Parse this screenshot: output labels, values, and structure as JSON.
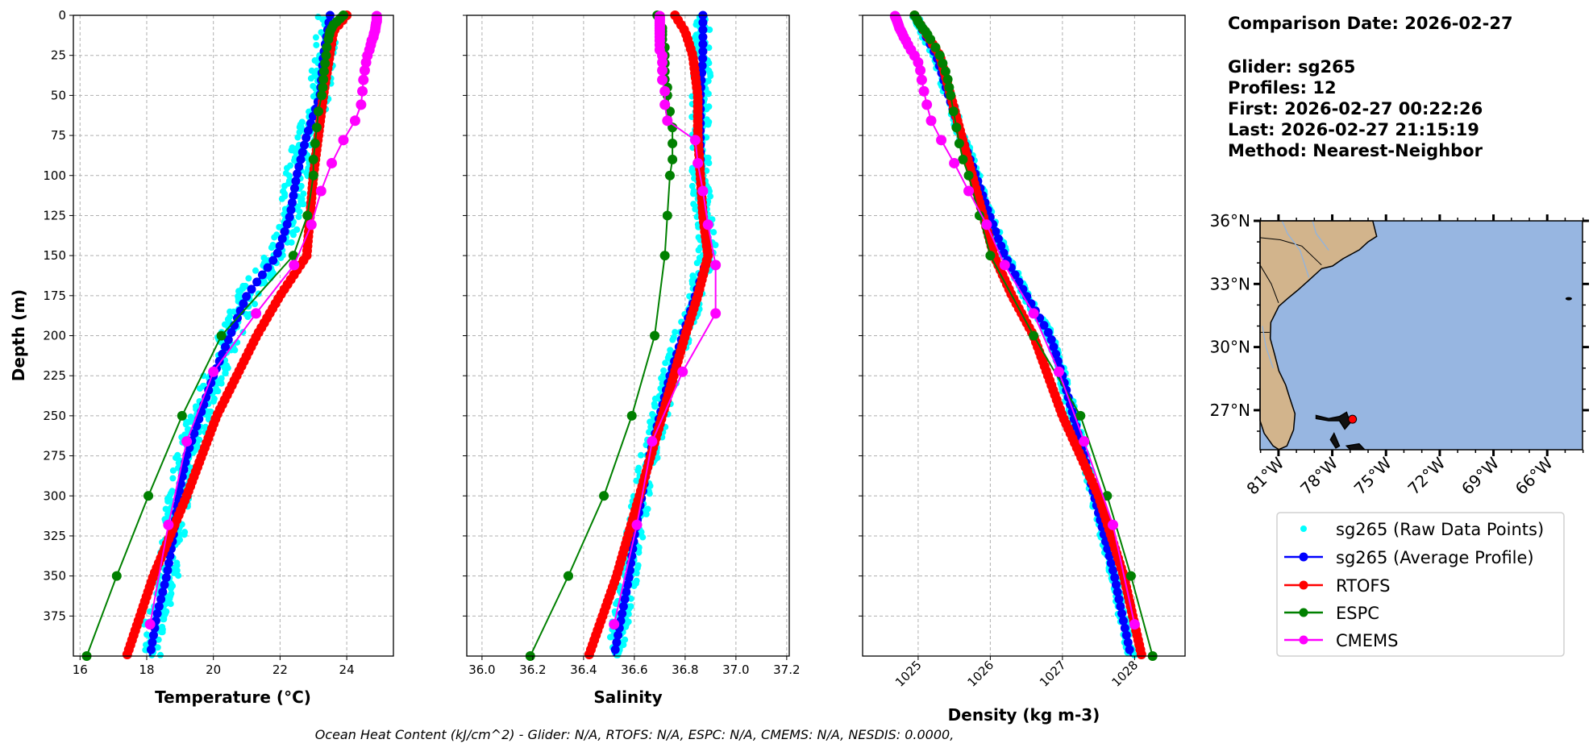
{
  "info": {
    "comparison_date": "Comparison Date: 2026-02-27",
    "glider": "Glider: sg265",
    "profiles": "Profiles: 12",
    "first": "First: 2026-02-27 00:22:26",
    "last": "Last: 2026-02-27 21:15:19",
    "method": "Method: Nearest-Neighbor"
  },
  "footer": "Ocean Heat Content (kJ/cm^2) - Glider: N/A,  RTOFS: N/A,  ESPC: N/A,  CMEMS: N/A,  NESDIS: 0.0000,",
  "legend": [
    {
      "label": "sg265 (Raw Data Points)",
      "color": "#00ffff",
      "style": "dot"
    },
    {
      "label": "sg265 (Average Profile)",
      "color": "#0000ff",
      "style": "line-marker"
    },
    {
      "label": "RTOFS",
      "color": "#ff0000",
      "style": "line-marker"
    },
    {
      "label": "ESPC",
      "color": "#008000",
      "style": "line-marker"
    },
    {
      "label": "CMEMS",
      "color": "#ff00ff",
      "style": "line-marker"
    }
  ],
  "map": {
    "lat_ticks": [
      "36°N",
      "33°N",
      "30°N",
      "27°N"
    ],
    "lat_values": [
      36,
      33,
      30,
      27
    ],
    "lon_ticks": [
      "81°W",
      "78°W",
      "75°W",
      "72°W",
      "69°W",
      "66°W"
    ],
    "lon_values": [
      -81,
      -78,
      -75,
      -72,
      -69,
      -66
    ],
    "lon_range": [
      -82.03,
      -64.03
    ],
    "lat_range": [
      25.12,
      36.0
    ],
    "glider_location": {
      "lon": -76.87,
      "lat": 26.57
    },
    "land_color": "#d2b48c",
    "ocean_color": "#97b6e1"
  },
  "chart_data": [
    {
      "type": "line",
      "title": "",
      "xlabel": "Temperature (°C)",
      "ylabel": "Depth (m)",
      "xlim": [
        15.8,
        25.4
      ],
      "ylim": [
        400,
        0
      ],
      "xticks": [
        16,
        18,
        20,
        22,
        24
      ],
      "xtick_labels": [
        "16",
        "18",
        "20",
        "22",
        "24"
      ],
      "yticks": [
        0,
        25,
        50,
        75,
        100,
        125,
        150,
        175,
        200,
        225,
        250,
        275,
        300,
        325,
        350,
        375
      ],
      "ytick_labels": [
        "0",
        "25",
        "50",
        "75",
        "100",
        "125",
        "150",
        "175",
        "200",
        "225",
        "250",
        "275",
        "300",
        "325",
        "350",
        "375"
      ],
      "grid": true,
      "raw_spread": 0.35,
      "series": [
        {
          "name": "sg265 (Average Profile)",
          "depth": [
            0,
            25,
            50,
            75,
            100,
            125,
            150,
            175,
            200,
            225,
            250,
            275,
            300,
            325,
            350,
            375,
            400
          ],
          "values": [
            23.5,
            23.3,
            23.2,
            22.8,
            22.5,
            22.3,
            21.9,
            21.0,
            20.5,
            20.0,
            19.6,
            19.2,
            18.95,
            18.8,
            18.6,
            18.3,
            18.1
          ]
        },
        {
          "name": "RTOFS",
          "depth": [
            0,
            10,
            50,
            100,
            125,
            150,
            175,
            200,
            250,
            300,
            350,
            375,
            400
          ],
          "values": [
            24.0,
            23.6,
            23.3,
            23.0,
            22.9,
            22.8,
            22.0,
            21.3,
            20.1,
            19.2,
            18.2,
            17.8,
            17.4
          ]
        },
        {
          "name": "ESPC",
          "depth": [
            0,
            2,
            4,
            6,
            8,
            10,
            12,
            15,
            20,
            25,
            30,
            35,
            40,
            45,
            50,
            60,
            70,
            80,
            90,
            100,
            125,
            150,
            200,
            250,
            300,
            350,
            400
          ],
          "values": [
            23.9,
            23.8,
            23.7,
            23.6,
            23.55,
            23.5,
            23.48,
            23.45,
            23.4,
            23.38,
            23.35,
            23.32,
            23.3,
            23.28,
            23.25,
            23.15,
            23.1,
            23.05,
            23.0,
            23.0,
            22.82,
            22.4,
            20.24,
            19.06,
            18.05,
            17.1,
            16.2
          ]
        },
        {
          "name": "CMEMS",
          "depth": [
            0.5,
            1.5,
            2.6,
            3.8,
            5.1,
            6.4,
            7.9,
            9.6,
            11.4,
            13.5,
            15.8,
            18.5,
            21.6,
            25.2,
            29.4,
            34.4,
            40.3,
            47.4,
            55.8,
            65.8,
            77.9,
            92.3,
            109.7,
            130.7,
            155.9,
            186.1,
            222.5,
            266.0,
            318.1,
            380.2
          ],
          "values": [
            24.9,
            24.9,
            24.9,
            24.9,
            24.88,
            24.87,
            24.86,
            24.85,
            24.82,
            24.8,
            24.75,
            24.72,
            24.68,
            24.62,
            24.58,
            24.54,
            24.5,
            24.47,
            24.43,
            24.25,
            23.9,
            23.55,
            23.23,
            22.94,
            22.42,
            21.28,
            20.0,
            19.2,
            18.65,
            18.1
          ]
        }
      ]
    },
    {
      "type": "line",
      "xlabel": "Salinity",
      "ylabel": "",
      "xlim": [
        35.94,
        37.21
      ],
      "ylim": [
        400,
        0
      ],
      "xticks": [
        36.0,
        36.2,
        36.4,
        36.6,
        36.8,
        37.0,
        37.2
      ],
      "xtick_labels": [
        "36.0",
        "36.2",
        "36.4",
        "36.6",
        "36.8",
        "37.0",
        "37.2"
      ],
      "grid": true,
      "raw_spread": 0.035,
      "series": [
        {
          "name": "sg265 (Average Profile)",
          "depth": [
            0,
            25,
            50,
            75,
            100,
            125,
            150,
            175,
            200,
            225,
            250,
            275,
            300,
            325,
            350,
            375,
            400
          ],
          "values": [
            36.87,
            36.87,
            36.86,
            36.86,
            36.86,
            36.87,
            36.89,
            36.84,
            36.79,
            36.74,
            36.7,
            36.66,
            36.63,
            36.6,
            36.58,
            36.55,
            36.52
          ]
        },
        {
          "name": "RTOFS",
          "depth": [
            0,
            10,
            25,
            50,
            75,
            100,
            125,
            150,
            175,
            200,
            250,
            300,
            350,
            400
          ],
          "values": [
            36.76,
            36.8,
            36.83,
            36.85,
            36.85,
            36.86,
            36.87,
            36.89,
            36.85,
            36.8,
            36.71,
            36.62,
            36.53,
            36.42
          ]
        },
        {
          "name": "ESPC",
          "depth": [
            0,
            2,
            4,
            6,
            8,
            10,
            12,
            15,
            20,
            25,
            30,
            35,
            40,
            45,
            50,
            60,
            70,
            80,
            90,
            100,
            125,
            150,
            200,
            250,
            300,
            350,
            400
          ],
          "values": [
            36.69,
            36.7,
            36.7,
            36.7,
            36.71,
            36.71,
            36.71,
            36.71,
            36.72,
            36.72,
            36.72,
            36.72,
            36.72,
            36.73,
            36.73,
            36.74,
            36.75,
            36.75,
            36.75,
            36.74,
            36.73,
            36.72,
            36.68,
            36.59,
            36.48,
            36.34,
            36.19
          ]
        },
        {
          "name": "CMEMS",
          "depth": [
            0.5,
            1.5,
            2.6,
            3.8,
            5.1,
            6.4,
            7.9,
            9.6,
            11.4,
            13.5,
            15.8,
            18.5,
            21.6,
            25.2,
            29.4,
            34.4,
            40.3,
            47.4,
            55.8,
            65.8,
            77.9,
            92.3,
            109.7,
            130.7,
            155.9,
            186.1,
            222.5,
            266.0,
            318.1,
            380.2
          ],
          "values": [
            36.7,
            36.7,
            36.7,
            36.7,
            36.7,
            36.7,
            36.7,
            36.7,
            36.7,
            36.7,
            36.7,
            36.7,
            36.7,
            36.71,
            36.71,
            36.71,
            36.71,
            36.72,
            36.72,
            36.73,
            36.84,
            36.85,
            36.87,
            36.89,
            36.92,
            36.92,
            36.79,
            36.67,
            36.61,
            36.52
          ]
        }
      ]
    },
    {
      "type": "line",
      "xlabel": "Density (kg m-3)",
      "ylabel": "",
      "xlim": [
        1024.23,
        1028.7
      ],
      "ylim": [
        400,
        0
      ],
      "xticks": [
        1025,
        1026,
        1027,
        1028
      ],
      "xtick_labels": [
        "1025",
        "1026",
        "1027",
        "1028"
      ],
      "grid": true,
      "raw_spread": 0.06,
      "series": [
        {
          "name": "sg265 (Average Profile)",
          "depth": [
            0,
            25,
            50,
            75,
            100,
            125,
            150,
            175,
            200,
            225,
            250,
            275,
            300,
            325,
            350,
            375,
            400
          ],
          "values": [
            1024.95,
            1025.25,
            1025.42,
            1025.6,
            1025.8,
            1025.99,
            1026.2,
            1026.5,
            1026.83,
            1027.0,
            1027.15,
            1027.3,
            1027.44,
            1027.58,
            1027.72,
            1027.83,
            1027.95
          ]
        },
        {
          "name": "RTOFS",
          "depth": [
            0,
            25,
            50,
            75,
            100,
            125,
            150,
            175,
            200,
            250,
            300,
            350,
            400
          ],
          "values": [
            1024.95,
            1025.3,
            1025.45,
            1025.6,
            1025.75,
            1025.9,
            1026.05,
            1026.3,
            1026.6,
            1027.0,
            1027.5,
            1027.85,
            1028.1
          ]
        },
        {
          "name": "ESPC",
          "depth": [
            0,
            2,
            4,
            6,
            8,
            10,
            12,
            15,
            20,
            25,
            30,
            35,
            40,
            45,
            50,
            60,
            70,
            80,
            90,
            100,
            125,
            150,
            200,
            250,
            300,
            350,
            400
          ],
          "values": [
            1024.95,
            1024.98,
            1025.0,
            1025.03,
            1025.06,
            1025.1,
            1025.13,
            1025.17,
            1025.24,
            1025.3,
            1025.34,
            1025.38,
            1025.41,
            1025.43,
            1025.45,
            1025.49,
            1025.53,
            1025.57,
            1025.62,
            1025.7,
            1025.85,
            1026.0,
            1026.6,
            1027.25,
            1027.62,
            1027.95,
            1028.25
          ]
        },
        {
          "name": "CMEMS",
          "depth": [
            0.5,
            1.5,
            2.6,
            3.8,
            5.1,
            6.4,
            7.9,
            9.6,
            11.4,
            13.5,
            15.8,
            18.5,
            21.6,
            25.2,
            29.4,
            34.4,
            40.3,
            47.4,
            55.8,
            65.8,
            77.9,
            92.3,
            109.7,
            130.7,
            155.9,
            186.1,
            222.5,
            266.0,
            318.1,
            380.2
          ],
          "values": [
            1024.68,
            1024.69,
            1024.7,
            1024.71,
            1024.72,
            1024.73,
            1024.74,
            1024.76,
            1024.78,
            1024.8,
            1024.83,
            1024.86,
            1024.9,
            1024.95,
            1025.0,
            1025.03,
            1025.05,
            1025.08,
            1025.12,
            1025.18,
            1025.32,
            1025.5,
            1025.7,
            1025.95,
            1026.2,
            1026.6,
            1026.95,
            1027.3,
            1027.7,
            1028.0
          ]
        }
      ]
    }
  ]
}
